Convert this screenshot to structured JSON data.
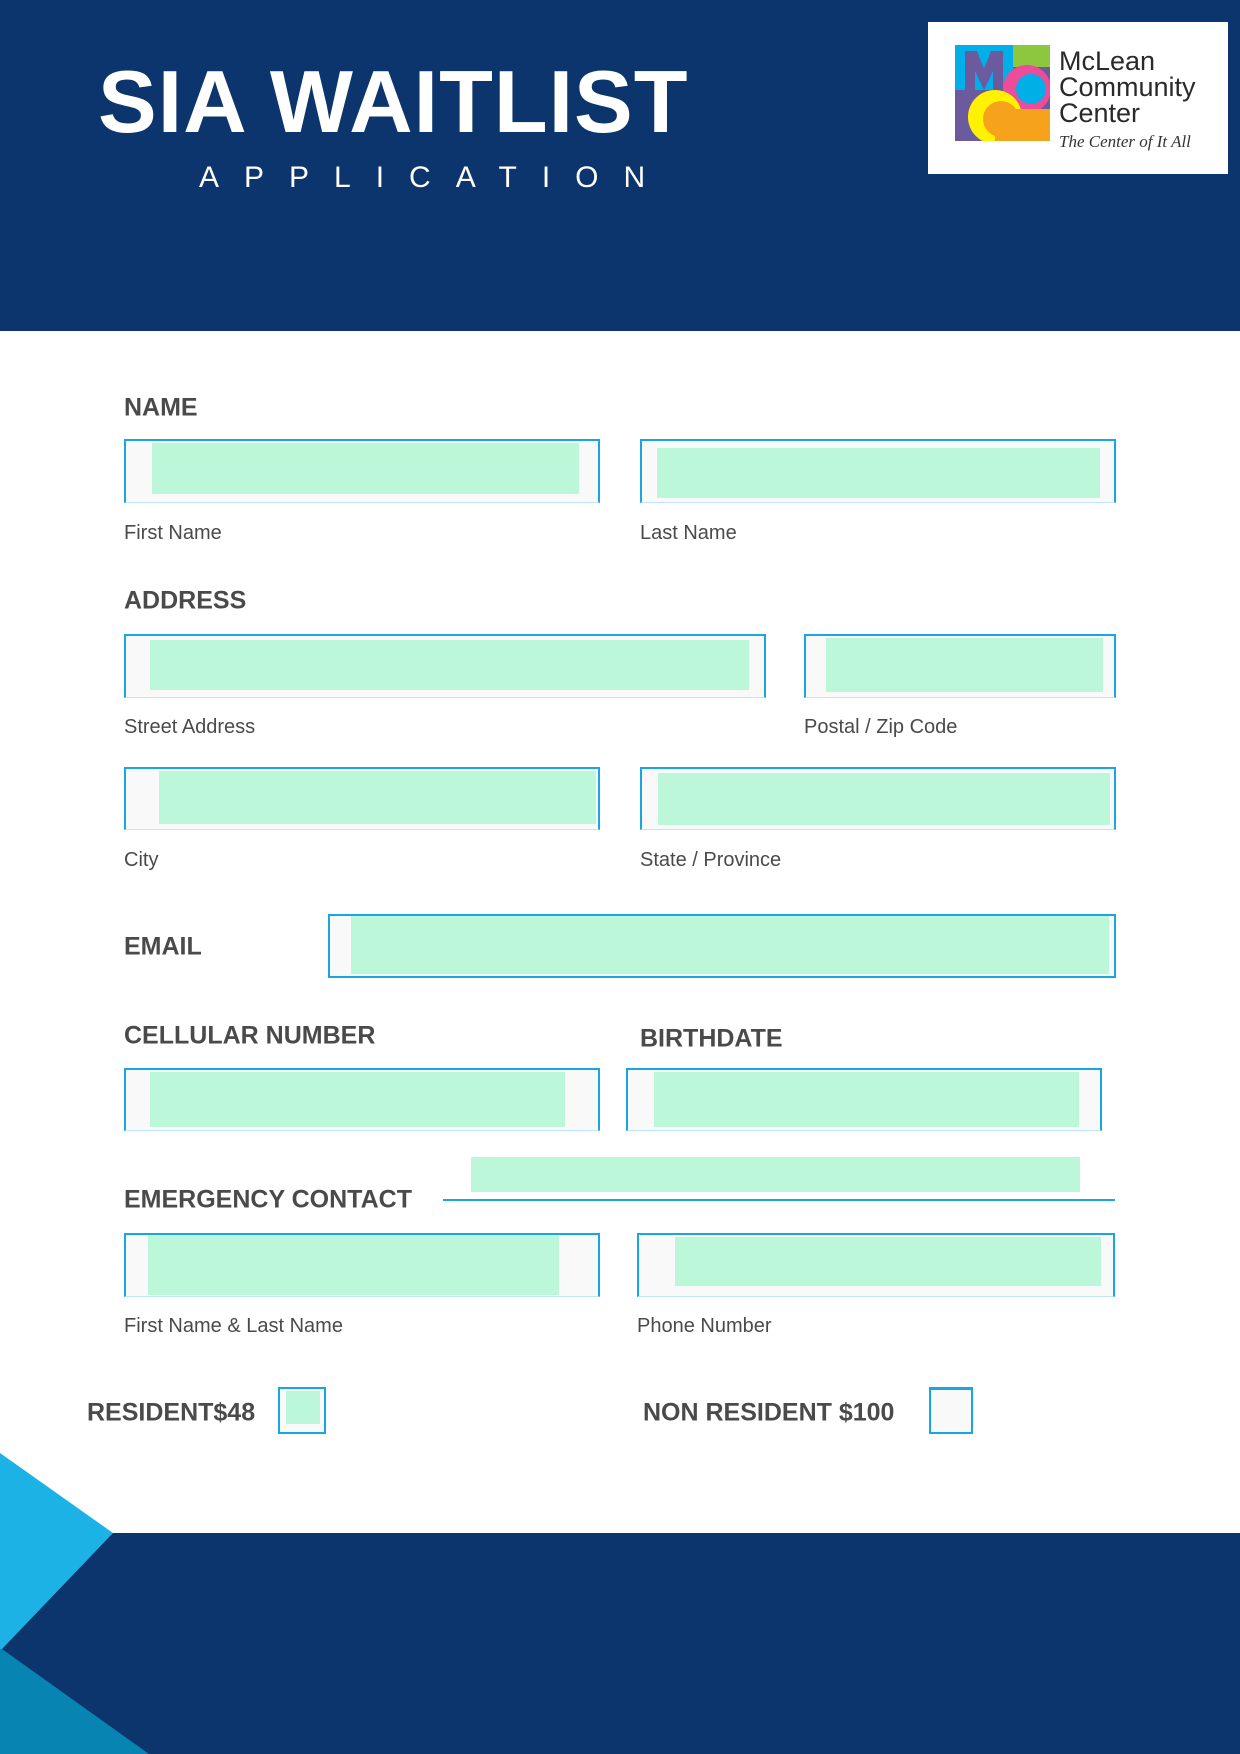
{
  "header": {
    "title": "SIA WAITLIST",
    "subtitle": "APPLICATION",
    "logo": {
      "name_lines": [
        "McLean",
        "Community",
        "Center"
      ],
      "tagline": "The Center of It All"
    }
  },
  "form": {
    "name": {
      "label": "NAME",
      "first_caption": "First Name",
      "last_caption": "Last Name",
      "first_value": "",
      "last_value": ""
    },
    "address": {
      "label": "ADDRESS",
      "street_caption": "Street Address",
      "zip_caption": "Postal / Zip Code",
      "city_caption": "City",
      "state_caption": "State / Province"
    },
    "email": {
      "label": "EMAIL"
    },
    "cell": {
      "label": "CELLULAR NUMBER"
    },
    "birthdate": {
      "label": "BIRTHDATE"
    },
    "emergency": {
      "label": "EMERGENCY CONTACT",
      "name_caption": "First Name & Last Name",
      "phone_caption": "Phone Number"
    },
    "fees": {
      "resident_label": "RESIDENT$48",
      "resident_checked": false,
      "nonresident_label": "NON RESIDENT $100",
      "nonresident_checked": false
    }
  },
  "colors": {
    "navy": "#0b356c",
    "accent": "#1aa7e0",
    "field_highlight": "#bbf7d8",
    "label_text": "#4a4a4a"
  }
}
